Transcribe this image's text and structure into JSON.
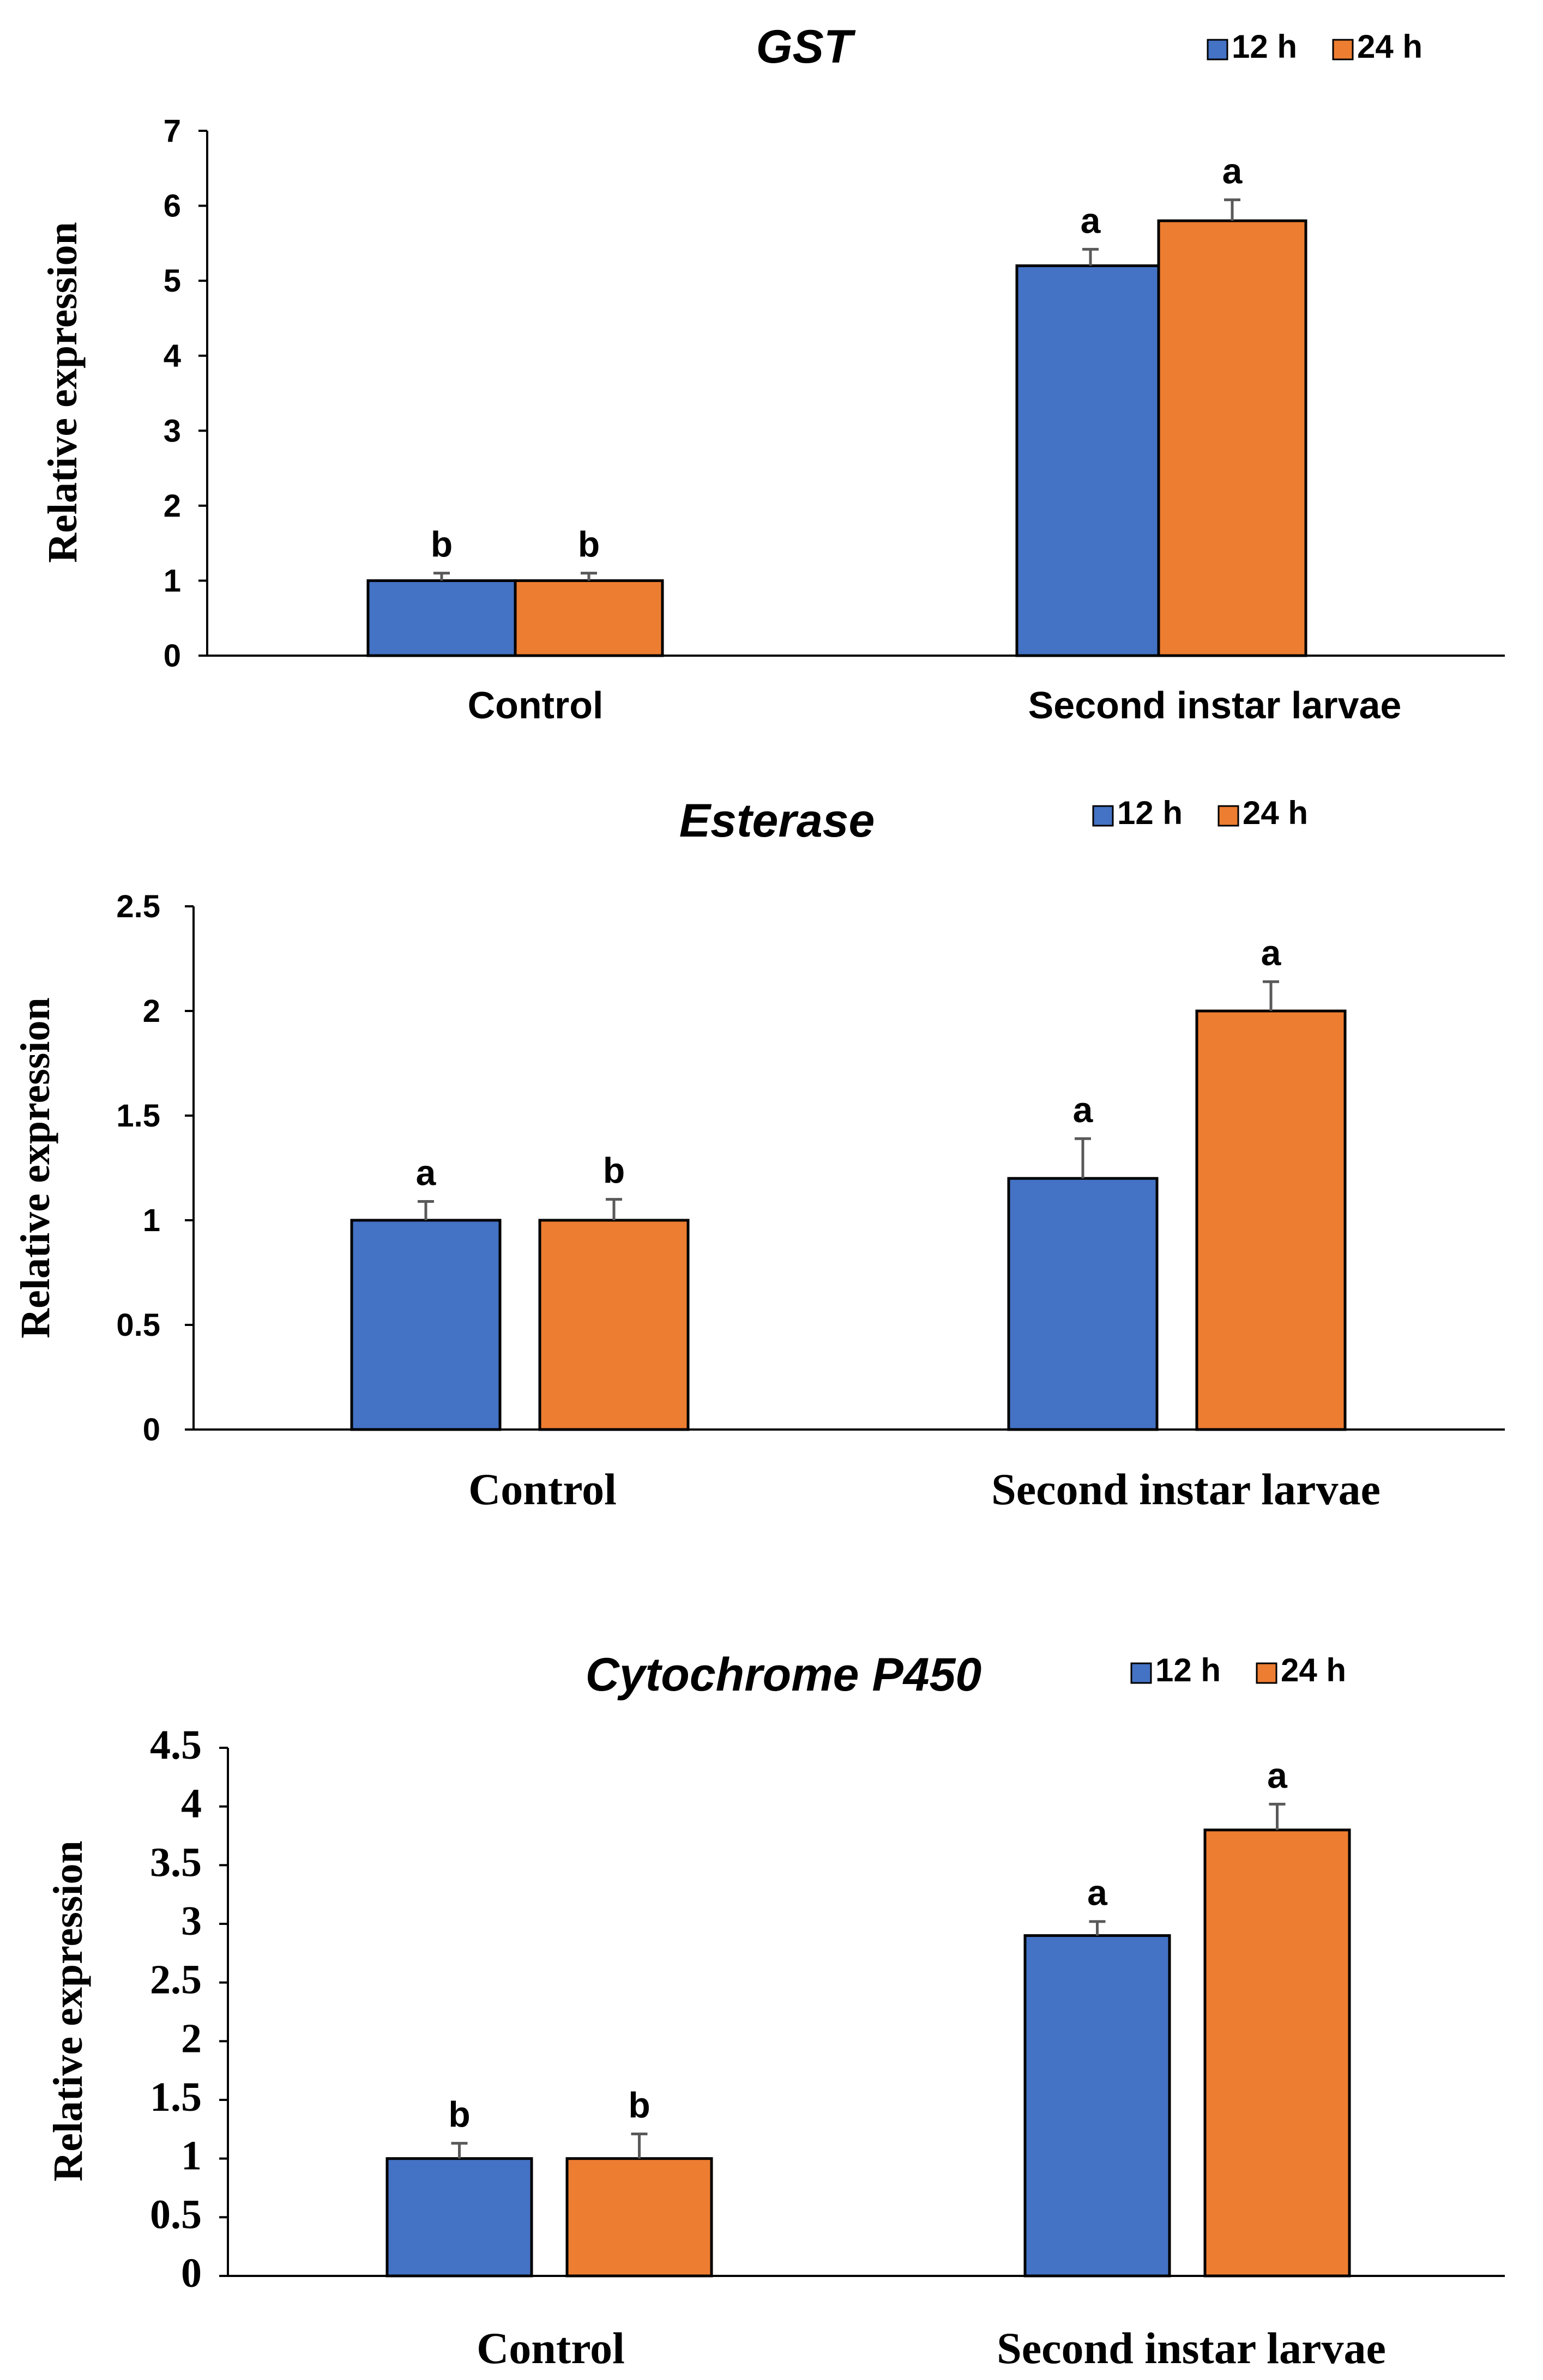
{
  "chart_data": [
    {
      "type": "bar",
      "title": "GST",
      "xlabel": "",
      "ylabel": "Relative expression",
      "ylim": [
        0,
        7
      ],
      "yticks": [
        "0",
        "1",
        "2",
        "3",
        "4",
        "5",
        "6",
        "7"
      ],
      "categories": [
        "Control",
        "Second instar larvae"
      ],
      "series": [
        {
          "name": "12 h",
          "color": "#4472C4",
          "values": [
            1.0,
            5.2
          ],
          "errors": [
            0.1,
            0.22
          ],
          "labels": [
            "b",
            "a"
          ]
        },
        {
          "name": "24 h",
          "color": "#ED7D31",
          "values": [
            1.0,
            5.8
          ],
          "errors": [
            0.1,
            0.28
          ],
          "labels": [
            "b",
            "a"
          ]
        }
      ],
      "legend": "top-right",
      "grid": false
    },
    {
      "type": "bar",
      "title": "Esterase",
      "xlabel": "",
      "ylabel": "Relative expression",
      "ylim": [
        0,
        2.5
      ],
      "yticks": [
        "0",
        "0.5",
        "1",
        "1.5",
        "2",
        "2.5"
      ],
      "categories": [
        "Control",
        "Second instar larvae"
      ],
      "series": [
        {
          "name": "12 h",
          "color": "#4472C4",
          "values": [
            1.0,
            1.2
          ],
          "errors": [
            0.09,
            0.19
          ],
          "labels": [
            "a",
            "a"
          ]
        },
        {
          "name": "24 h",
          "color": "#ED7D31",
          "values": [
            1.0,
            2.0
          ],
          "errors": [
            0.1,
            0.14
          ],
          "labels": [
            "b",
            "a"
          ]
        }
      ],
      "legend": "top-right",
      "grid": false
    },
    {
      "type": "bar",
      "title": "Cytochrome P450",
      "xlabel": "",
      "ylabel": "Relative expression",
      "ylim": [
        0,
        4.5
      ],
      "yticks": [
        "0",
        "0.5",
        "1",
        "1.5",
        "2",
        "2.5",
        "3",
        "3.5",
        "4",
        "4.5"
      ],
      "categories": [
        "Control",
        "Second instar larvae"
      ],
      "series": [
        {
          "name": "12 h",
          "color": "#4472C4",
          "values": [
            1.0,
            2.9
          ],
          "errors": [
            0.13,
            0.12
          ],
          "labels": [
            "b",
            "a"
          ]
        },
        {
          "name": "24 h",
          "color": "#ED7D31",
          "values": [
            1.0,
            3.8
          ],
          "errors": [
            0.21,
            0.22
          ],
          "labels": [
            "b",
            "a"
          ]
        }
      ],
      "legend": "top-right",
      "grid": false
    }
  ]
}
